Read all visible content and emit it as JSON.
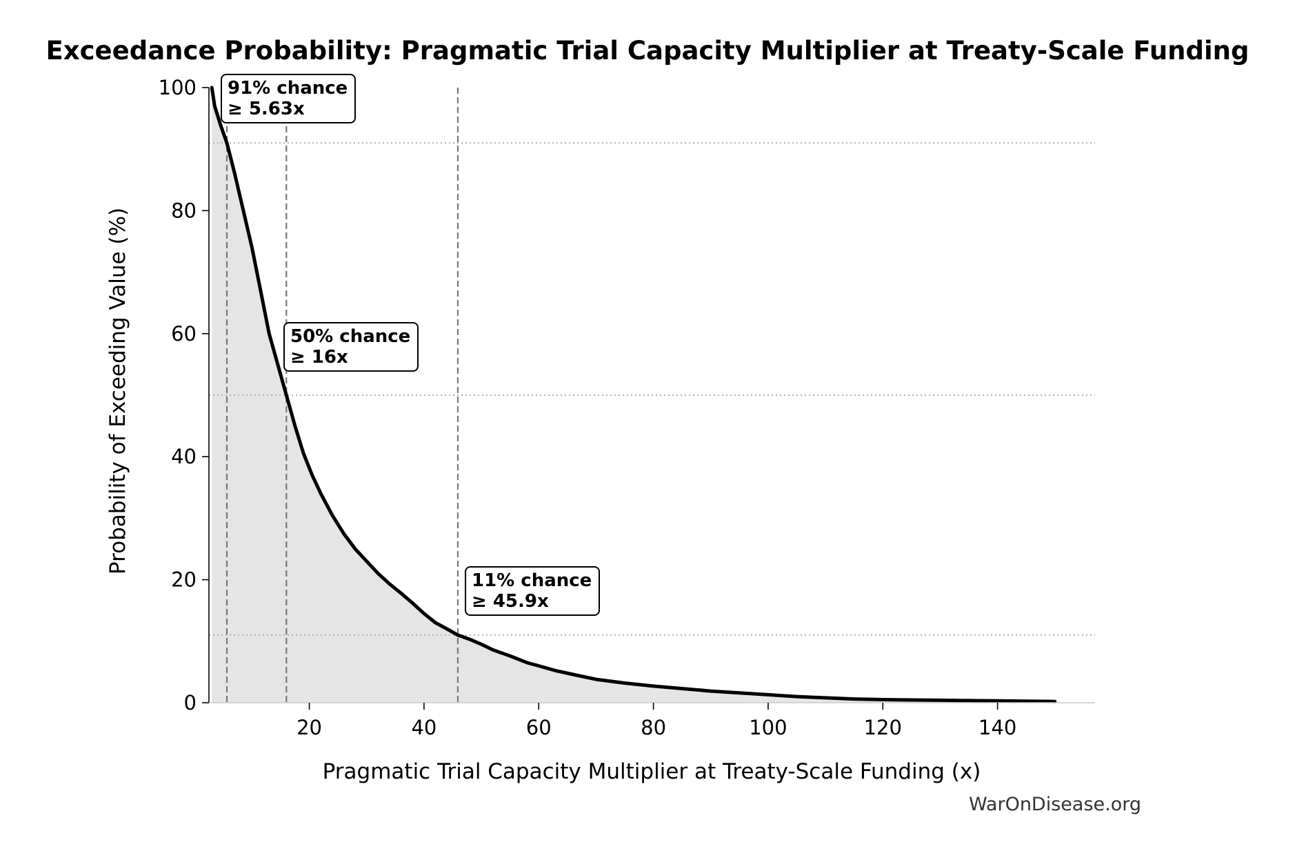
{
  "chart_data": {
    "type": "area",
    "title": "Exceedance Probability: Pragmatic Trial Capacity Multiplier at Treaty-Scale Funding",
    "xlabel": "Pragmatic Trial Capacity Multiplier at Treaty-Scale Funding (x)",
    "ylabel": "Probability of Exceeding Value (%)",
    "xlim": [
      2.5,
      157
    ],
    "ylim": [
      0,
      100
    ],
    "xticks": [
      20,
      40,
      60,
      80,
      100,
      120,
      140
    ],
    "yticks": [
      0,
      20,
      40,
      60,
      80,
      100
    ],
    "grid": false,
    "source": "WarOnDisease.org",
    "colors": {
      "line": "#000000",
      "fill": "#e5e5e5",
      "marker_line": "#777777",
      "ref_line": "#b0b0b0"
    },
    "series": [
      {
        "x": [
          3,
          3.5,
          4.5,
          5.63,
          7,
          8.5,
          10,
          11.5,
          13,
          14.5,
          16,
          17.5,
          19,
          20.5,
          22,
          24,
          26,
          28,
          30,
          32,
          34,
          36,
          38,
          40,
          42,
          44,
          45.9,
          48,
          50,
          52,
          55,
          58,
          60,
          63,
          66,
          70,
          75,
          80,
          85,
          90,
          95,
          100,
          105,
          110,
          115,
          120,
          125,
          130,
          135,
          140,
          145,
          150
        ],
        "y": [
          100,
          97,
          94,
          91,
          86,
          80,
          74,
          67,
          60,
          55,
          50,
          45,
          40.5,
          37,
          34,
          30.5,
          27.5,
          25,
          23,
          21,
          19.3,
          17.8,
          16.2,
          14.5,
          13,
          12,
          11,
          10.3,
          9.5,
          8.6,
          7.6,
          6.5,
          6,
          5.2,
          4.6,
          3.8,
          3.2,
          2.7,
          2.3,
          1.9,
          1.6,
          1.3,
          1.0,
          0.8,
          0.6,
          0.5,
          0.45,
          0.4,
          0.35,
          0.3,
          0.25,
          0.2
        ]
      }
    ],
    "markers": [
      {
        "x": 5.63,
        "y": 91,
        "label_line1": "91% chance",
        "label_line2": "≥ 5.63x"
      },
      {
        "x": 16,
        "y": 50,
        "label_line1": "50% chance",
        "label_line2": "≥ 16x"
      },
      {
        "x": 45.9,
        "y": 11,
        "label_line1": "11% chance",
        "label_line2": "≥ 45.9x"
      }
    ]
  }
}
